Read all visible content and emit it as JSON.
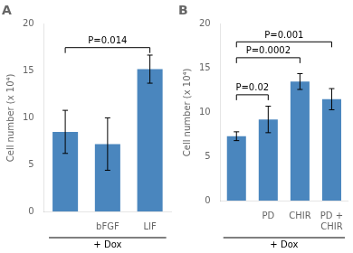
{
  "chart_data": [
    {
      "type": "bar",
      "title": "A",
      "categories": [
        null,
        "bFGF",
        "LIF"
      ],
      "values": [
        8.5,
        7.2,
        15.2
      ],
      "errors": [
        2.3,
        2.8,
        1.5
      ],
      "color": "#4a86be",
      "ylabel": "Cell number (x 10⁴)",
      "ylim": [
        0,
        20
      ],
      "yticks": [
        0,
        5,
        10,
        15,
        20
      ],
      "grid": false,
      "annotations": [
        {
          "text": "P=0.014",
          "x1": 0,
          "x2": 2,
          "y": 17.5
        },
        {
          "text": "+ Dox"
        }
      ]
    },
    {
      "type": "bar",
      "title": "B",
      "categories": [
        null,
        "PD",
        "CHIR",
        "PD +\nCHIR"
      ],
      "values": [
        7.3,
        9.2,
        13.5,
        11.5
      ],
      "errors": [
        0.5,
        1.5,
        0.9,
        1.2
      ],
      "color": "#4a86be",
      "ylabel": "Cell number (x 10⁴)",
      "ylim": [
        0,
        20
      ],
      "yticks": [
        0,
        5,
        10,
        15,
        20
      ],
      "grid": false,
      "annotations": [
        {
          "text": "P=0.001",
          "x1": 0,
          "x2": 3,
          "y": 18.0
        },
        {
          "text": "P=0.0002",
          "x1": 0,
          "x2": 2,
          "y": 16.2
        },
        {
          "text": "P=0.02",
          "x1": 0,
          "x2": 1,
          "y": 12.0
        },
        {
          "text": "+ Dox"
        }
      ]
    }
  ]
}
